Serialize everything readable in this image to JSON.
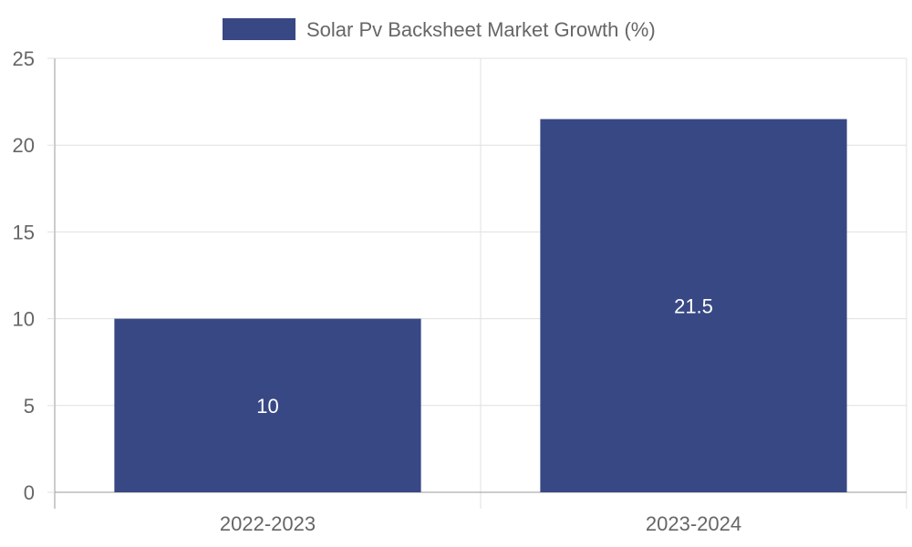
{
  "chart_data": {
    "type": "bar",
    "title": "",
    "xlabel": "",
    "ylabel": "",
    "categories": [
      "2022-2023",
      "2023-2024"
    ],
    "series": [
      {
        "name": "Solar Pv Backsheet Market Growth (%)",
        "values": [
          10,
          21.5
        ],
        "color": "#384884"
      }
    ],
    "ylim": [
      0,
      25
    ],
    "yticks": [
      0,
      5,
      10,
      15,
      20,
      25
    ],
    "data_labels": [
      "10",
      "21.5"
    ],
    "legend": "top-center",
    "grid": true
  },
  "colors": {
    "bar": "#384884",
    "grid": "#e0e0e0",
    "axis": "#999999",
    "text": "#666666",
    "data_label": "#ffffff"
  }
}
